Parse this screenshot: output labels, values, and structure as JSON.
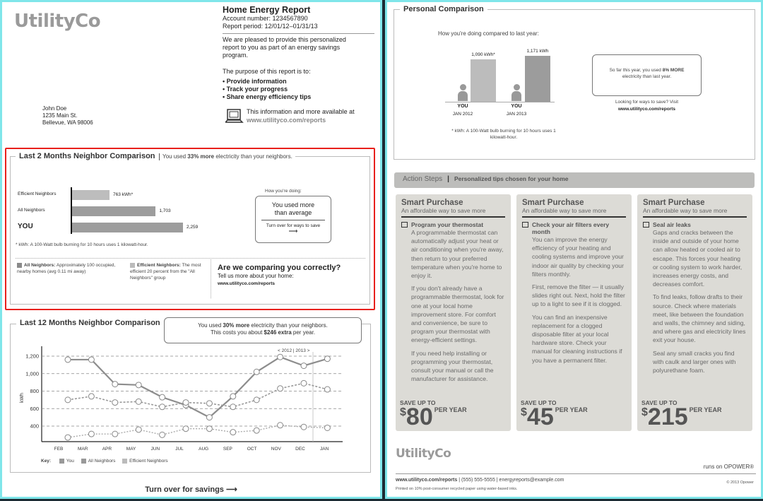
{
  "left": {
    "logo": "UtilityCo",
    "report": {
      "title": "Home Energy Report",
      "account": "Account number: 1234567890",
      "period": "Report period: 12/01/12–01/31/13",
      "intro": "We are pleased to provide this personalized report to you as part of an energy savings program.",
      "purpose": "The purpose of this report is to:",
      "bullets": [
        "• Provide information",
        "• Track your progress",
        "• Share energy efficiency tips"
      ],
      "online": "This information and more available at",
      "url": "www.utilityco.com/reports",
      "icon": "laptop-icon"
    },
    "address": [
      "John Doe",
      "1235 Main St.",
      "Bellevue, WA 98006"
    ],
    "two_month": {
      "title": "Last 2 Months Neighbor Comparison",
      "summary_pre": "You used ",
      "summary_bold": "33% more",
      "summary_post": " electricity than your neighbors.",
      "doing_label": "How you're doing:",
      "doing_text": "You used more than average",
      "turn": "Turn over for ways to save",
      "footnote": "* kWh: A 100-Watt bulb burning for 10 hours uses 1 kilowatt-hour.",
      "legend_all_b": "All Neighbors:",
      "legend_all": " Approximately 100 occupied, nearby homes (avg 0.11 mi away)",
      "legend_eff_b": "Efficient Neighbors:",
      "legend_eff": " The most efficient 20 percent from the \"All Neighbors\" group",
      "ask_title": "Are we comparing you correctly?",
      "ask_text": "Tell us more about your home:",
      "ask_url": "www.utilityco.com/reports"
    },
    "twelve_month": {
      "title": "Last 12 Months Neighbor Comparison",
      "msg1_pre": "You used ",
      "msg1_bold": "30% more",
      "msg1_post": " electricity than your neighbors.",
      "msg2_pre": "This costs you about ",
      "msg2_bold": "$246 extra",
      "msg2_post": " per year.",
      "year_marker": "< 2012 | 2013 >",
      "key": "Key:"
    },
    "turn_over": "Turn over for savings ⟶",
    "highlight_color": "#e8201c"
  },
  "right": {
    "personal": {
      "title": "Personal Comparison",
      "subtitle": "How you're doing compared to last year:",
      "footnote": "* kWh: A 100-Watt bulb burning for 10 hours uses 1 kilowatt-hour.",
      "note_pre": "So far this year, you used ",
      "note_bold": "8% MORE",
      "note_post": " electricity than last year.",
      "looking": "Looking for ways to save? Visit",
      "url": "www.utilityco.com/reports"
    },
    "action": {
      "title": "Action Steps",
      "subtitle": "Personalized tips chosen for your home"
    },
    "cards": [
      {
        "heading": "Smart Purchase",
        "sub": "An affordable way to save more",
        "tip": "Program your thermostat",
        "paras": [
          "A programmable thermostat can automatically adjust your heat or air conditioning when you're away, then return to your preferred temperature when you're home to enjoy it.",
          "If you don't already have a programmable thermostat, look for one at your local home improvement store. For comfort and convenience, be sure to program your thermostat with energy-efficient settings.",
          "If you need help installing or programming your thermostat, consult your manual or call the manufacturer for assistance."
        ],
        "save_label": "SAVE UP TO",
        "amount": "80",
        "per": "PER YEAR"
      },
      {
        "heading": "Smart Purchase",
        "sub": "An affordable way to save more",
        "tip": "Check your air filters every month",
        "paras": [
          "You can improve the energy efficiency of your heating and cooling systems and improve your indoor air quality by checking your filters monthly.",
          "First, remove the filter — it usually slides right out. Next, hold the filter up to a light to see if it is clogged.",
          "You can find an inexpensive replacement for a clogged disposable filter at your local hardware store. Check your manual for cleaning instructions if you have a permanent filter."
        ],
        "save_label": "SAVE UP TO",
        "amount": "45",
        "per": "PER YEAR"
      },
      {
        "heading": "Smart Purchase",
        "sub": "An affordable way to save more",
        "tip": "Seal air leaks",
        "paras": [
          "Gaps and cracks between the inside and outside of your home can allow heated or cooled air to escape. This forces your heating or cooling system to work harder, increases energy costs, and decreases comfort.",
          "To find leaks, follow drafts to their source. Check where materials meet, like between the foundation and walls, the chimney and siding, and where gas and electricity lines exit your house.",
          "Seal any small cracks you find with caulk and larger ones with polyurethane foam."
        ],
        "save_label": "SAVE UP TO",
        "amount": "215",
        "per": "PER YEAR"
      }
    ],
    "footer": {
      "logo": "UtilityCo",
      "runs_on": "runs on OPOWER®",
      "url": "www.utilityco.com/reports",
      "contact": " | (555) 555-5555 | energyreports@example.com",
      "printed": "Printed on 10% post-consumer recycled paper using water-based inks.",
      "copyright": "© 2013 Opower"
    }
  },
  "chart_data": [
    {
      "type": "bar",
      "orientation": "horizontal",
      "categories": [
        "Efficient Neighbors",
        "All Neighbors",
        "YOU"
      ],
      "values": [
        763,
        1703,
        2259
      ],
      "value_labels": [
        "763 kWh*",
        "1,703",
        "2,259"
      ],
      "unit": "kWh"
    },
    {
      "type": "bar",
      "categories": [
        "JAN 2012",
        "JAN 2013"
      ],
      "category_top": [
        "YOU",
        "YOU"
      ],
      "values": [
        1090,
        1171
      ],
      "value_labels": [
        "1,090 kWh*",
        "1,171 kWh"
      ],
      "unit": "kWh"
    },
    {
      "type": "line",
      "x": [
        "FEB",
        "MAR",
        "APR",
        "MAY",
        "JUN",
        "JUL",
        "AUG",
        "SEP",
        "OCT",
        "NOV",
        "DEC",
        "JAN"
      ],
      "ylabel": "kWh",
      "ylim": [
        250,
        1300
      ],
      "yticks": [
        400,
        600,
        800,
        1000,
        1200
      ],
      "ytick_labels": [
        "400",
        "600",
        "800",
        "1,000",
        "1,200"
      ],
      "grid": true,
      "legend": "bottom-left",
      "series": [
        {
          "name": "You",
          "values": [
            1160,
            1160,
            880,
            870,
            730,
            640,
            500,
            740,
            1020,
            1190,
            1090,
            1170
          ],
          "style": "solid"
        },
        {
          "name": "All Neighbors",
          "values": [
            700,
            740,
            670,
            680,
            620,
            670,
            660,
            620,
            700,
            830,
            890,
            820
          ],
          "style": "dashed"
        },
        {
          "name": "Efficient Neighbors",
          "values": [
            270,
            310,
            310,
            360,
            300,
            370,
            370,
            330,
            350,
            410,
            390,
            380
          ],
          "style": "dotted"
        }
      ]
    }
  ]
}
